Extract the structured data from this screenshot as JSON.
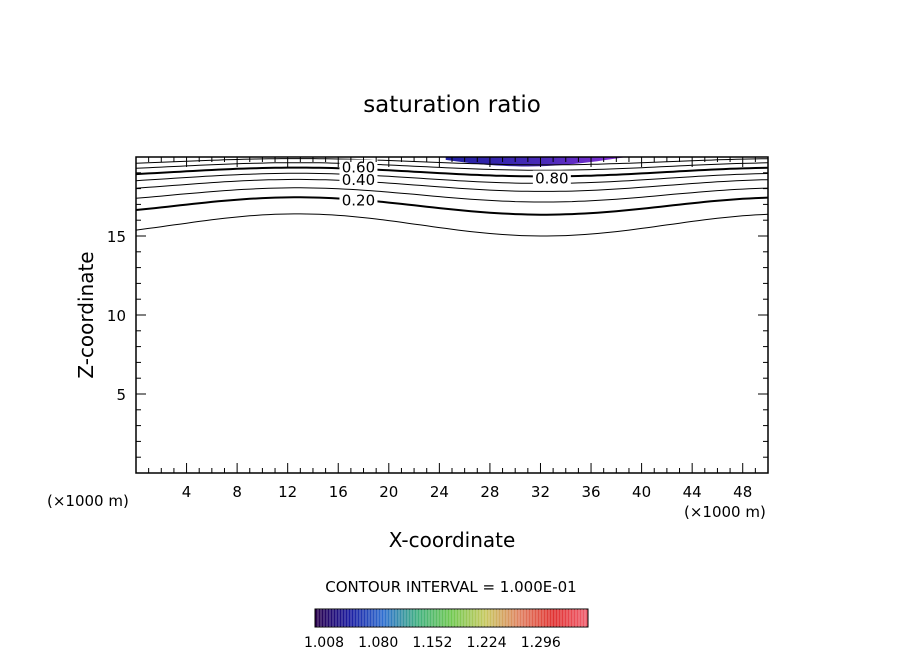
{
  "chart_data": {
    "type": "contour",
    "title": "saturation ratio",
    "xlabel": "X-coordinate",
    "ylabel": "Z-coordinate",
    "x_unit_left": "(×1000 m)",
    "x_unit_right": "(×1000 m)",
    "xlim": [
      0,
      50
    ],
    "ylim": [
      0,
      20
    ],
    "x_ticks": [
      4,
      8,
      12,
      16,
      20,
      24,
      28,
      32,
      36,
      40,
      44,
      48
    ],
    "y_ticks": [
      5,
      10,
      15
    ],
    "contour_interval_text": "CONTOUR INTERVAL = 1.000E-01",
    "contour_labels": [
      {
        "text": "0.20",
        "x": 17.6,
        "y": 17.3
      },
      {
        "text": "0.40",
        "x": 17.6,
        "y": 18.6
      },
      {
        "text": "0.60",
        "x": 17.6,
        "y": 19.4
      },
      {
        "text": "0.80",
        "x": 32.9,
        "y": 18.7
      }
    ],
    "contours": [
      {
        "level": 0.1,
        "base": 15.7,
        "amp": 0.7,
        "bold": false
      },
      {
        "level": 0.2,
        "base": 16.9,
        "amp": 0.55,
        "bold": true
      },
      {
        "level": 0.3,
        "base": 17.6,
        "amp": 0.45,
        "bold": false
      },
      {
        "level": 0.4,
        "base": 18.2,
        "amp": 0.38,
        "bold": false
      },
      {
        "level": 0.5,
        "base": 18.65,
        "amp": 0.32,
        "bold": false
      },
      {
        "level": 0.6,
        "base": 19.05,
        "amp": 0.28,
        "bold": true
      },
      {
        "level": 0.7,
        "base": 19.4,
        "amp": 0.24,
        "bold": false
      },
      {
        "level": 0.8,
        "base": 19.7,
        "amp": 0.2,
        "bold": false
      }
    ],
    "shaded_region": {
      "x_start": 24.5,
      "x_end": 38.8,
      "y_min": 19.4,
      "y_max": 20
    },
    "colorbar": {
      "ticks": [
        "1.008",
        "1.080",
        "1.152",
        "1.224",
        "1.296"
      ],
      "min": 1.008,
      "max": 1.35,
      "colors": [
        "#2a004a",
        "#1a1aa0",
        "#2f6fd0",
        "#40b080",
        "#70c850",
        "#c8c860",
        "#e08060",
        "#e03030",
        "#f06070"
      ]
    }
  }
}
